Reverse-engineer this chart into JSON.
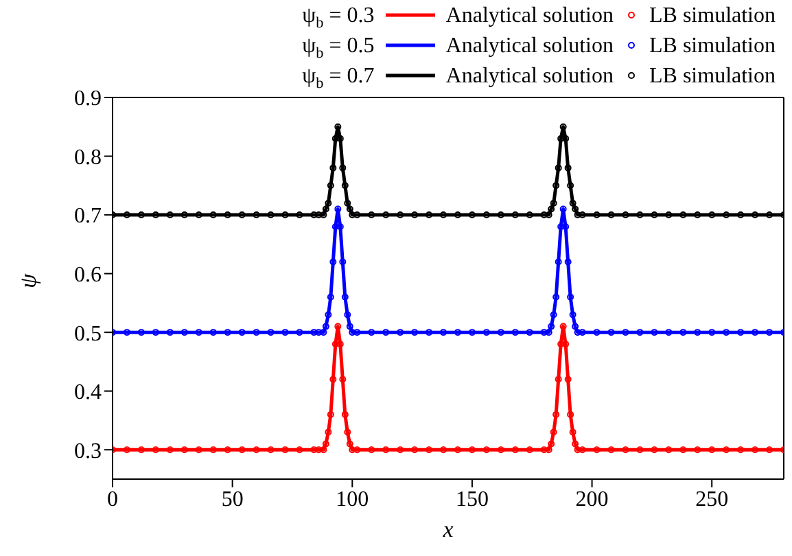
{
  "chart_data": {
    "type": "line",
    "xlabel": "x",
    "ylabel": "ψ",
    "xlim": [
      0,
      280
    ],
    "ylim": [
      0.25,
      0.9
    ],
    "xticks": [
      0,
      50,
      100,
      150,
      200,
      250
    ],
    "yticks": [
      0.3,
      0.4,
      0.5,
      0.6,
      0.7,
      0.8,
      0.9
    ],
    "legend": "top",
    "annotations": [
      "ψ$_{b}$ = 0.3",
      "ψ$_{b}$ = 0.5",
      "ψ$_{b}$ = 0.7"
    ],
    "x": [
      0,
      6,
      12,
      18,
      24,
      30,
      36,
      42,
      48,
      54,
      60,
      66,
      72,
      78,
      84,
      86,
      88,
      89,
      90,
      91,
      92,
      93,
      94,
      95,
      96,
      97,
      98,
      99,
      100,
      102,
      108,
      114,
      120,
      126,
      132,
      138,
      144,
      150,
      156,
      162,
      168,
      174,
      180,
      182,
      183,
      184,
      185,
      186,
      187,
      188,
      189,
      190,
      191,
      192,
      193,
      194,
      196,
      202,
      208,
      214,
      220,
      226,
      232,
      238,
      244,
      250,
      256,
      262,
      268,
      274,
      280
    ],
    "series": [
      {
        "name": "Analytical solution",
        "marker": "none",
        "color": "#ff0000",
        "values": [
          0.3,
          0.3,
          0.3,
          0.3,
          0.3,
          0.3,
          0.3,
          0.3,
          0.3,
          0.3,
          0.3,
          0.3,
          0.3,
          0.3,
          0.3,
          0.3,
          0.3,
          0.31,
          0.33,
          0.36,
          0.42,
          0.48,
          0.51,
          0.48,
          0.42,
          0.36,
          0.33,
          0.31,
          0.3,
          0.3,
          0.3,
          0.3,
          0.3,
          0.3,
          0.3,
          0.3,
          0.3,
          0.3,
          0.3,
          0.3,
          0.3,
          0.3,
          0.3,
          0.3,
          0.31,
          0.33,
          0.36,
          0.42,
          0.48,
          0.51,
          0.48,
          0.42,
          0.36,
          0.33,
          0.31,
          0.3,
          0.3,
          0.3,
          0.3,
          0.3,
          0.3,
          0.3,
          0.3,
          0.3,
          0.3,
          0.3,
          0.3,
          0.3,
          0.3,
          0.3,
          0.3
        ]
      },
      {
        "name": "LB simulation",
        "type": "scatter",
        "marker": "circle",
        "color": "#ff0000",
        "values": [
          0.3,
          0.3,
          0.3,
          0.3,
          0.3,
          0.3,
          0.3,
          0.3,
          0.3,
          0.3,
          0.3,
          0.3,
          0.3,
          0.3,
          0.3,
          0.3,
          0.3,
          0.31,
          0.33,
          0.36,
          0.42,
          0.48,
          0.51,
          0.48,
          0.42,
          0.36,
          0.33,
          0.31,
          0.3,
          0.3,
          0.3,
          0.3,
          0.3,
          0.3,
          0.3,
          0.3,
          0.3,
          0.3,
          0.3,
          0.3,
          0.3,
          0.3,
          0.3,
          0.3,
          0.31,
          0.33,
          0.36,
          0.42,
          0.48,
          0.51,
          0.48,
          0.42,
          0.36,
          0.33,
          0.31,
          0.3,
          0.3,
          0.3,
          0.3,
          0.3,
          0.3,
          0.3,
          0.3,
          0.3,
          0.3,
          0.3,
          0.3,
          0.3,
          0.3,
          0.3,
          0.3
        ]
      },
      {
        "name": "Analytical solution",
        "marker": "none",
        "color": "#0000ff",
        "values": [
          0.5,
          0.5,
          0.5,
          0.5,
          0.5,
          0.5,
          0.5,
          0.5,
          0.5,
          0.5,
          0.5,
          0.5,
          0.5,
          0.5,
          0.5,
          0.5,
          0.5,
          0.51,
          0.53,
          0.56,
          0.62,
          0.68,
          0.71,
          0.68,
          0.62,
          0.56,
          0.53,
          0.51,
          0.5,
          0.5,
          0.5,
          0.5,
          0.5,
          0.5,
          0.5,
          0.5,
          0.5,
          0.5,
          0.5,
          0.5,
          0.5,
          0.5,
          0.5,
          0.5,
          0.51,
          0.53,
          0.56,
          0.62,
          0.68,
          0.71,
          0.68,
          0.62,
          0.56,
          0.53,
          0.51,
          0.5,
          0.5,
          0.5,
          0.5,
          0.5,
          0.5,
          0.5,
          0.5,
          0.5,
          0.5,
          0.5,
          0.5,
          0.5,
          0.5,
          0.5,
          0.5
        ]
      },
      {
        "name": "LB simulation",
        "type": "scatter",
        "marker": "circle",
        "color": "#0000ff",
        "values": [
          0.5,
          0.5,
          0.5,
          0.5,
          0.5,
          0.5,
          0.5,
          0.5,
          0.5,
          0.5,
          0.5,
          0.5,
          0.5,
          0.5,
          0.5,
          0.5,
          0.5,
          0.51,
          0.53,
          0.56,
          0.62,
          0.68,
          0.71,
          0.68,
          0.62,
          0.56,
          0.53,
          0.51,
          0.5,
          0.5,
          0.5,
          0.5,
          0.5,
          0.5,
          0.5,
          0.5,
          0.5,
          0.5,
          0.5,
          0.5,
          0.5,
          0.5,
          0.5,
          0.5,
          0.51,
          0.53,
          0.56,
          0.62,
          0.68,
          0.71,
          0.68,
          0.62,
          0.56,
          0.53,
          0.51,
          0.5,
          0.5,
          0.5,
          0.5,
          0.5,
          0.5,
          0.5,
          0.5,
          0.5,
          0.5,
          0.5,
          0.5,
          0.5,
          0.5,
          0.5,
          0.5
        ]
      },
      {
        "name": "Analytical solution",
        "marker": "none",
        "color": "#000000",
        "values": [
          0.7,
          0.7,
          0.7,
          0.7,
          0.7,
          0.7,
          0.7,
          0.7,
          0.7,
          0.7,
          0.7,
          0.7,
          0.7,
          0.7,
          0.7,
          0.7,
          0.7,
          0.71,
          0.72,
          0.75,
          0.78,
          0.83,
          0.85,
          0.83,
          0.78,
          0.75,
          0.72,
          0.71,
          0.7,
          0.7,
          0.7,
          0.7,
          0.7,
          0.7,
          0.7,
          0.7,
          0.7,
          0.7,
          0.7,
          0.7,
          0.7,
          0.7,
          0.7,
          0.7,
          0.71,
          0.72,
          0.75,
          0.78,
          0.83,
          0.85,
          0.83,
          0.78,
          0.75,
          0.72,
          0.71,
          0.7,
          0.7,
          0.7,
          0.7,
          0.7,
          0.7,
          0.7,
          0.7,
          0.7,
          0.7,
          0.7,
          0.7,
          0.7,
          0.7,
          0.7,
          0.7
        ]
      },
      {
        "name": "LB simulation",
        "type": "scatter",
        "marker": "circle",
        "color": "#000000",
        "values": [
          0.7,
          0.7,
          0.7,
          0.7,
          0.7,
          0.7,
          0.7,
          0.7,
          0.7,
          0.7,
          0.7,
          0.7,
          0.7,
          0.7,
          0.7,
          0.7,
          0.7,
          0.71,
          0.72,
          0.75,
          0.78,
          0.83,
          0.85,
          0.83,
          0.78,
          0.75,
          0.72,
          0.71,
          0.7,
          0.7,
          0.7,
          0.7,
          0.7,
          0.7,
          0.7,
          0.7,
          0.7,
          0.7,
          0.7,
          0.7,
          0.7,
          0.7,
          0.7,
          0.7,
          0.71,
          0.72,
          0.75,
          0.78,
          0.83,
          0.85,
          0.83,
          0.78,
          0.75,
          0.72,
          0.71,
          0.7,
          0.7,
          0.7,
          0.7,
          0.7,
          0.7,
          0.7,
          0.7,
          0.7,
          0.7,
          0.7,
          0.7,
          0.7,
          0.7,
          0.7,
          0.7
        ]
      }
    ]
  }
}
